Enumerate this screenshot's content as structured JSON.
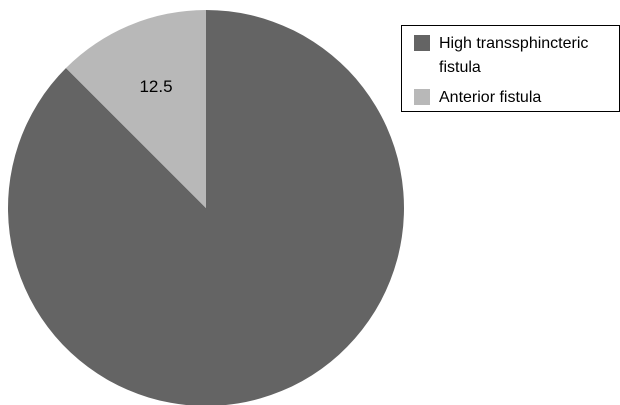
{
  "chart_data": {
    "type": "pie",
    "categories": [
      "High transsphincteric fistula",
      "Anterior fistula"
    ],
    "values": [
      87.5,
      12.5
    ],
    "data_labels": [
      "",
      "12.5"
    ],
    "colors": [
      "#646464",
      "#b8b8b8"
    ],
    "legend": {
      "placement": "top-right",
      "entries": [
        "High transsphincteric fistula",
        "Anterior fistula"
      ]
    }
  }
}
